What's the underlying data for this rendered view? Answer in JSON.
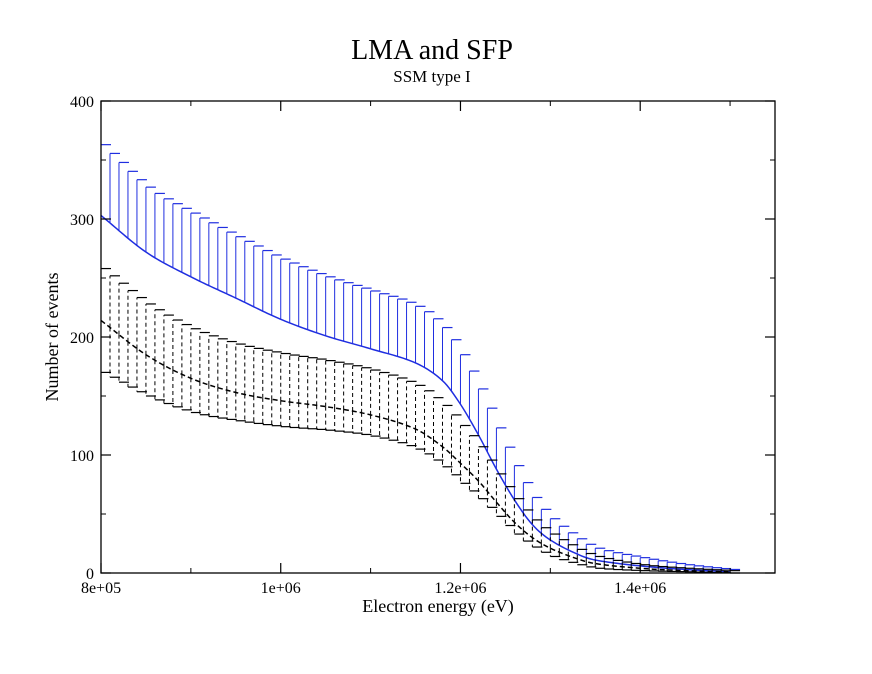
{
  "chart_data": {
    "type": "line",
    "title": "LMA and SFP",
    "subtitle": "SSM type I",
    "xlabel": "Electron energy (eV)",
    "ylabel": "Number of events",
    "xlim": [
      800000,
      1550000
    ],
    "ylim": [
      0,
      400
    ],
    "xticks": [
      {
        "value": 800000,
        "label": "8e+05"
      },
      {
        "value": 1000000,
        "label": "1e+06"
      },
      {
        "value": 1200000,
        "label": "1.2e+06"
      },
      {
        "value": 1400000,
        "label": "1.4e+06"
      }
    ],
    "yticks": [
      {
        "value": 0,
        "label": "0"
      },
      {
        "value": 100,
        "label": "100"
      },
      {
        "value": 200,
        "label": "200"
      },
      {
        "value": 300,
        "label": "300"
      },
      {
        "value": 400,
        "label": "400"
      }
    ],
    "grid": false,
    "legend": "none",
    "series": [
      {
        "color": "#1f2ee0",
        "style": "solid",
        "errorbars": "upper",
        "x": [
          800000,
          850000,
          900000,
          950000,
          1000000,
          1050000,
          1100000,
          1150000,
          1180000,
          1200000,
          1220000,
          1240000,
          1260000,
          1280000,
          1300000,
          1330000,
          1350000,
          1400000,
          1450000,
          1500000
        ],
        "values": [
          303,
          272,
          251,
          233,
          215,
          201,
          190,
          178,
          163,
          143,
          117,
          88,
          62,
          41,
          28,
          16,
          11,
          6,
          3,
          1
        ],
        "error_upper": [
          363,
          327,
          305,
          285,
          266,
          251,
          239,
          226,
          208,
          185,
          156,
          123,
          91,
          64,
          46,
          29,
          21,
          13,
          7,
          3
        ]
      },
      {
        "color": "#000000",
        "style": "dashed",
        "errorbars": "both",
        "x": [
          800000,
          850000,
          900000,
          950000,
          1000000,
          1050000,
          1100000,
          1150000,
          1180000,
          1200000,
          1220000,
          1240000,
          1260000,
          1280000,
          1300000,
          1330000,
          1350000,
          1400000,
          1450000,
          1500000
        ],
        "values": [
          214,
          185,
          165,
          153,
          146,
          141,
          134,
          122,
          107,
          93,
          78,
          60,
          43,
          30,
          21,
          12,
          8,
          4,
          2,
          1
        ],
        "error_upper": [
          258,
          228,
          207,
          194,
          186,
          180,
          172,
          159,
          142,
          125,
          107,
          84,
          63,
          45,
          33,
          20,
          14,
          7,
          4,
          2
        ],
        "error_lower": [
          170,
          150,
          136,
          129,
          124,
          121,
          116,
          105,
          90,
          76,
          63,
          48,
          33,
          22,
          14,
          7,
          4,
          2,
          1,
          0
        ]
      }
    ]
  }
}
